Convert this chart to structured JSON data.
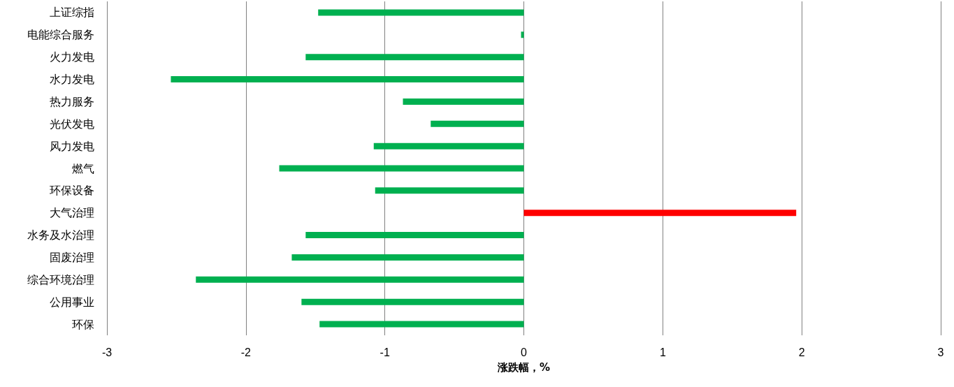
{
  "chart_data": {
    "type": "bar",
    "orientation": "horizontal",
    "xlabel": "涨跌幅，%",
    "categories": [
      "上证综指",
      "电能综合服务",
      "火力发电",
      "水力发电",
      "热力服务",
      "光伏发电",
      "风力发电",
      "燃气",
      "环保设备",
      "大气治理",
      "水务及水治理",
      "固废治理",
      "综合环境治理",
      "公用事业",
      "环保"
    ],
    "values": [
      -1.48,
      -0.02,
      -1.57,
      -2.54,
      -0.87,
      -0.67,
      -1.08,
      -1.76,
      -1.07,
      1.96,
      -1.57,
      -1.67,
      -2.36,
      -1.6,
      -1.47
    ],
    "colors": [
      "#00b050",
      "#00b050",
      "#00b050",
      "#00b050",
      "#00b050",
      "#00b050",
      "#00b050",
      "#00b050",
      "#00b050",
      "#ff0000",
      "#00b050",
      "#00b050",
      "#00b050",
      "#00b050",
      "#00b050"
    ],
    "xlim": [
      -3,
      3
    ],
    "xticks": [
      -3,
      -2,
      -1,
      0,
      1,
      2,
      3
    ],
    "grid": "x"
  }
}
